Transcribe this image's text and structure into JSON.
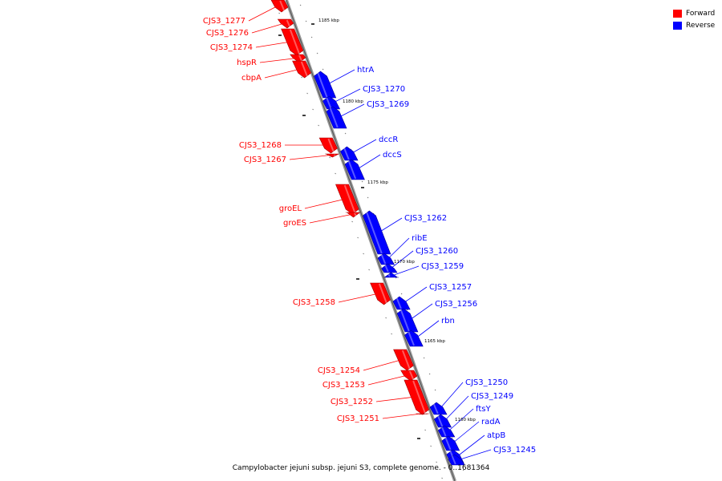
{
  "legend": {
    "forward": {
      "label": "Forward",
      "color": "#ff0000"
    },
    "reverse": {
      "label": "Reverse",
      "color": "#0000ff"
    }
  },
  "caption": "Campylobacter jejuni subsp. jejuni S3, complete genome. - 0..1681364",
  "scale_marks": [
    "1185 kbp",
    "1180 kbp",
    "1175 kbp",
    "1170 kbp",
    "1165 kbp",
    "1160 kbp"
  ],
  "genes": [
    {
      "name": "CJS3_1277",
      "strand": "forward"
    },
    {
      "name": "CJS3_1276",
      "strand": "forward"
    },
    {
      "name": "CJS3_1274",
      "strand": "forward"
    },
    {
      "name": "hspR",
      "strand": "forward"
    },
    {
      "name": "cbpA",
      "strand": "forward"
    },
    {
      "name": "htrA",
      "strand": "reverse"
    },
    {
      "name": "CJS3_1270",
      "strand": "reverse"
    },
    {
      "name": "CJS3_1269",
      "strand": "reverse"
    },
    {
      "name": "CJS3_1268",
      "strand": "forward"
    },
    {
      "name": "CJS3_1267",
      "strand": "forward"
    },
    {
      "name": "dccR",
      "strand": "reverse"
    },
    {
      "name": "dccS",
      "strand": "reverse"
    },
    {
      "name": "groEL",
      "strand": "forward"
    },
    {
      "name": "groES",
      "strand": "forward"
    },
    {
      "name": "CJS3_1262",
      "strand": "reverse"
    },
    {
      "name": "ribE",
      "strand": "reverse"
    },
    {
      "name": "CJS3_1260",
      "strand": "reverse"
    },
    {
      "name": "CJS3_1259",
      "strand": "reverse"
    },
    {
      "name": "CJS3_1258",
      "strand": "forward"
    },
    {
      "name": "CJS3_1257",
      "strand": "reverse"
    },
    {
      "name": "CJS3_1256",
      "strand": "reverse"
    },
    {
      "name": "rbn",
      "strand": "reverse"
    },
    {
      "name": "CJS3_1254",
      "strand": "forward"
    },
    {
      "name": "CJS3_1253",
      "strand": "forward"
    },
    {
      "name": "CJS3_1252",
      "strand": "forward"
    },
    {
      "name": "CJS3_1251",
      "strand": "forward"
    },
    {
      "name": "CJS3_1250",
      "strand": "reverse"
    },
    {
      "name": "CJS3_1249",
      "strand": "reverse"
    },
    {
      "name": "ftsY",
      "strand": "reverse"
    },
    {
      "name": "radA",
      "strand": "reverse"
    },
    {
      "name": "atpB",
      "strand": "reverse"
    },
    {
      "name": "CJS3_1245",
      "strand": "reverse"
    }
  ]
}
